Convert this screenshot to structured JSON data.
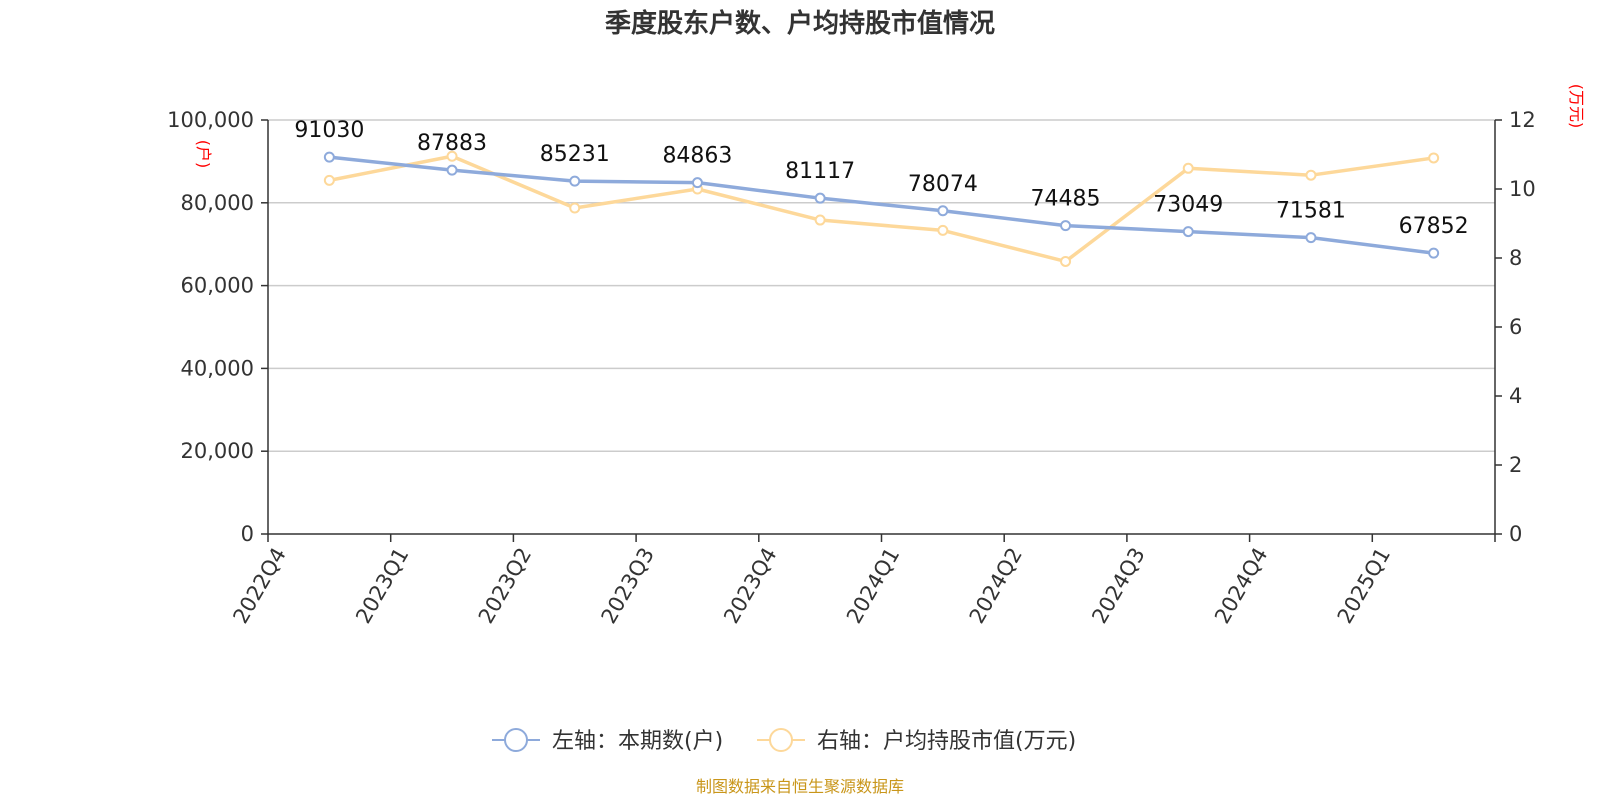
{
  "chart_data": {
    "type": "line",
    "title": "季度股东户数、户均持股市值情况",
    "categories": [
      "2022Q4",
      "2023Q1",
      "2023Q2",
      "2023Q3",
      "2023Q4",
      "2024Q1",
      "2024Q2",
      "2024Q3",
      "2024Q4",
      "2025Q1"
    ],
    "series": [
      {
        "name": "左轴：本期数(户)",
        "axis": "left",
        "color": "#8eaadb",
        "values": [
          91030,
          87883,
          85231,
          84863,
          81117,
          78074,
          74485,
          73049,
          71581,
          67852
        ],
        "data_labels": [
          "91030",
          "87883",
          "85231",
          "84863",
          "81117",
          "78074",
          "74485",
          "73049",
          "71581",
          "67852"
        ]
      },
      {
        "name": "右轴：户均持股市值(万元)",
        "axis": "right",
        "color": "#fdd89a",
        "values": [
          10.25,
          10.95,
          9.45,
          10.0,
          9.1,
          8.8,
          7.9,
          10.6,
          10.4,
          10.9
        ]
      }
    ],
    "left_axis": {
      "unit": "(户)",
      "ylim": [
        0,
        100000
      ],
      "ticks": [
        0,
        20000,
        40000,
        60000,
        80000,
        100000
      ],
      "tick_labels": [
        "0",
        "20,000",
        "40,000",
        "60,000",
        "80,000",
        "100,000"
      ]
    },
    "right_axis": {
      "unit": "(万元)",
      "ylim": [
        0,
        12
      ],
      "ticks": [
        0,
        2,
        4,
        6,
        8,
        10,
        12
      ],
      "tick_labels": [
        "0",
        "2",
        "4",
        "6",
        "8",
        "10",
        "12"
      ]
    },
    "grid": true,
    "legend_position": "bottom-center",
    "source": "制图数据来自恒生聚源数据库"
  }
}
